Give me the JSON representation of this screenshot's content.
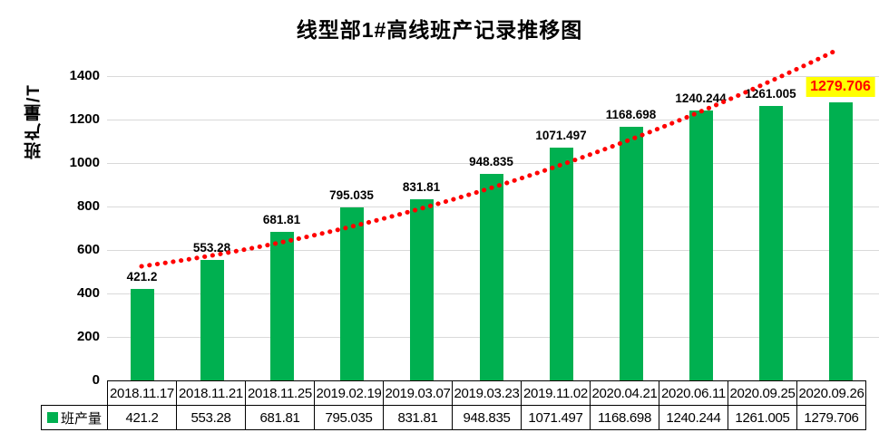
{
  "chart": {
    "title": "线型部1#高线班产记录推移图",
    "y_axis_title": "班产量/T",
    "legend_label": "班产量"
  },
  "colors": {
    "bar": "#00B050",
    "trendline": "#FF0000",
    "gridline": "#D9D9D9",
    "highlight_background": "#FFFF00",
    "highlight_text": "#FF0000"
  },
  "chart_data": {
    "type": "bar",
    "title": "线型部1#高线班产记录推移图",
    "xlabel": "",
    "ylabel": "班产量/T",
    "categories": [
      "2018.11.17",
      "2018.11.21",
      "2018.11.25",
      "2019.02.19",
      "2019.03.07",
      "2019.03.23",
      "2019.11.02",
      "2020.04.21",
      "2020.06.11",
      "2020.09.25",
      "2020.09.26"
    ],
    "series": [
      {
        "name": "班产量",
        "values": [
          421.2,
          553.28,
          681.81,
          795.035,
          831.81,
          948.835,
          1071.497,
          1168.698,
          1240.244,
          1261.005,
          1279.706
        ]
      }
    ],
    "data_labels": [
      "421.2",
      "553.28",
      "681.81",
      "795.035",
      "831.81",
      "948.835",
      "1071.497",
      "1168.698",
      "1240.244",
      "1261.005",
      "1279.706"
    ],
    "ylim": [
      0,
      1500
    ],
    "y_ticks": [
      0,
      200,
      400,
      600,
      800,
      1000,
      1200,
      1400
    ],
    "grid": true,
    "legend_position": "data-table-left",
    "data_table_shown": true,
    "trendline": {
      "style": "dotted",
      "color": "#FF0000",
      "shape": "concave-up"
    },
    "highlighted_label": {
      "index": 10,
      "text": "1279.706",
      "background": "#FFFF00",
      "color": "#FF0000"
    }
  }
}
